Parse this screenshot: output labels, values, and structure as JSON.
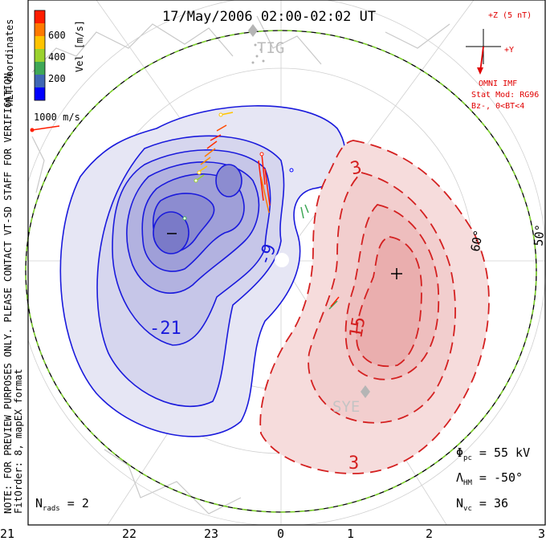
{
  "title": "17/May/2006 02:00-02:02 UT",
  "side_note_1": "NOTE: FOR PREVIEW PURPOSES ONLY. PLEASE CONTACT VT-SD STAFF FOR VERIFICATION.",
  "side_note_2": "FitOrder: 8, mapEX format",
  "coords_label": "MLT coordinates",
  "velocity_legend": {
    "label": "Vel [m/s]",
    "ticks": [
      "600",
      "400",
      "200"
    ],
    "colors": [
      "#0000ff",
      "#3f67b4",
      "#3fa857",
      "#9bd22e",
      "#ffc400",
      "#ff7a00",
      "#ff1d00"
    ],
    "ref_vector": "1000 m/s"
  },
  "imf": {
    "z_label": "+Z (5 nT)",
    "y_label": "+Y",
    "lines": [
      "OMNI IMF",
      "Stat Mod: RG96",
      "Bz-, 0<BT<4"
    ]
  },
  "stations": [
    "TIG",
    "SYE"
  ],
  "contour_labels": {
    "neg": [
      "-21",
      "-9"
    ],
    "pos": [
      "15",
      "3",
      "3"
    ],
    "lat_labels": [
      "60°",
      "50°"
    ]
  },
  "stats": {
    "phi_pc": "55 kV",
    "lambda_hm": "-50°",
    "n_vc": "36",
    "n_rads": "2"
  },
  "mlt_ticks": [
    "21",
    "22",
    "23",
    "0",
    "1",
    "2",
    "3"
  ],
  "colors": {
    "negative": "#1a1adc",
    "positive": "#d42020",
    "boundary_green": "#7ed12d"
  }
}
